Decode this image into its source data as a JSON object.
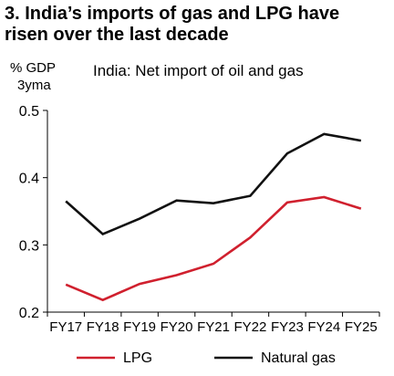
{
  "figure": {
    "heading_line1": "3. India’s imports of gas and LPG have",
    "heading_line2": "risen over the last decade"
  },
  "chart_data": {
    "type": "line",
    "title": "India: Net import of oil and gas",
    "ylabel_line1": "% GDP",
    "ylabel_line2": "3yma",
    "xlabel": "",
    "categories": [
      "FY17",
      "FY18",
      "FY19",
      "FY20",
      "FY21",
      "FY22",
      "FY23",
      "FY24",
      "FY25"
    ],
    "ylim": [
      0.2,
      0.5
    ],
    "yticks": [
      0.2,
      0.3,
      0.4,
      0.5
    ],
    "ytick_labels": [
      "0.2",
      "0.3",
      "0.4",
      "0.5"
    ],
    "grid": false,
    "legend_position": "bottom",
    "series": [
      {
        "name": "LPG",
        "color": "#d0202e",
        "values": [
          0.241,
          0.218,
          0.242,
          0.255,
          0.272,
          0.311,
          0.363,
          0.371,
          0.354
        ]
      },
      {
        "name": "Natural gas",
        "color": "#111111",
        "values": [
          0.365,
          0.316,
          0.339,
          0.366,
          0.362,
          0.373,
          0.436,
          0.465,
          0.455
        ]
      }
    ]
  }
}
